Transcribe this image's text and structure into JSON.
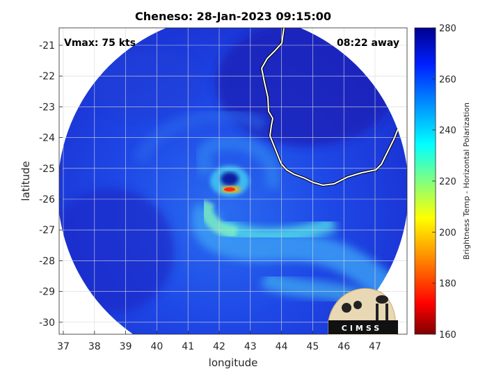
{
  "title": "Cheneso: 28-Jan-2023 09:15:00",
  "vmax": "Vmax: 75 kts",
  "time_away": "08:22 away",
  "xlabel": "longitude",
  "ylabel": "latitude",
  "x_ticks": [
    "37",
    "38",
    "39",
    "40",
    "41",
    "42",
    "43",
    "44",
    "45",
    "46",
    "47"
  ],
  "y_ticks": [
    "-21",
    "-22",
    "-23",
    "-24",
    "-25",
    "-26",
    "-27",
    "-28",
    "-29",
    "-30"
  ],
  "colorbar": {
    "label": "Brightness Temp - Horizontal Polarization",
    "ticks": [
      "280",
      "260",
      "240",
      "220",
      "200",
      "180",
      "160"
    ],
    "range": [
      160,
      280
    ]
  },
  "logo_text": "CIMSS",
  "storm_center": {
    "lon": 42.2,
    "lat": -25.65
  },
  "colors": {
    "background_field": "#1f3fe0",
    "outer": "#0b1aa8",
    "band": "#3fb8f0",
    "eyewall": "#ff3a10"
  }
}
